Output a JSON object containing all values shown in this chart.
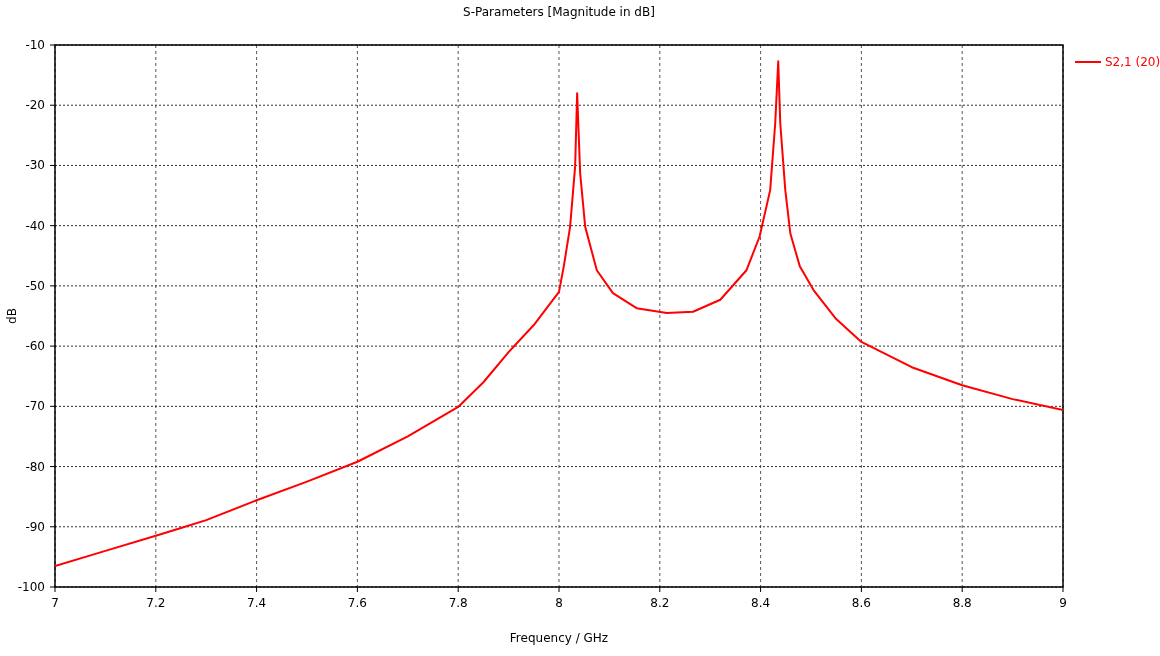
{
  "chart_data": {
    "type": "line",
    "title": "S-Parameters [Magnitude in dB]",
    "xlabel": "Frequency / GHz",
    "ylabel": "dB",
    "x": [
      7,
      7.1,
      7.2,
      7.25,
      7.3,
      7.4,
      7.5,
      7.6,
      7.7,
      7.8,
      7.85,
      7.9,
      7.95,
      8,
      8.01,
      8.022,
      8.032,
      8.036,
      8.042,
      8.052,
      8.075,
      8.107,
      8.154,
      8.214,
      8.266,
      8.32,
      8.372,
      8.398,
      8.419,
      8.429,
      8.435,
      8.439,
      8.449,
      8.459,
      8.478,
      8.505,
      8.55,
      8.6,
      8.7,
      8.8,
      8.9,
      9
    ],
    "series": [
      {
        "name": "S2,1 (20)",
        "color": "#ff0000",
        "values": [
          -96.5,
          -94,
          -91.5,
          -90.2,
          -88.9,
          -85.6,
          -82.5,
          -79.2,
          -75,
          -70.1,
          -66,
          -61,
          -56.5,
          -51,
          -46.5,
          -40.2,
          -30.2,
          -18,
          -31.3,
          -40.2,
          -47.4,
          -51.2,
          -53.7,
          -54.5,
          -54.3,
          -52.3,
          -47.4,
          -41.8,
          -34.1,
          -23,
          -12.7,
          -23,
          -34.1,
          -41.3,
          -46.8,
          -50.7,
          -55.5,
          -59.3,
          -63.5,
          -66.5,
          -68.8,
          -70.6
        ]
      }
    ],
    "xlim": [
      7,
      9
    ],
    "ylim": [
      -100,
      -10
    ],
    "xticks": [
      7,
      7.2,
      7.4,
      7.6,
      7.8,
      8,
      8.2,
      8.4,
      8.6,
      8.8,
      9
    ],
    "yticks": [
      -100,
      -90,
      -80,
      -70,
      -60,
      -50,
      -40,
      -30,
      -20,
      -10
    ],
    "grid": true,
    "legend": "right",
    "line_style": "solid",
    "marker": "none"
  }
}
